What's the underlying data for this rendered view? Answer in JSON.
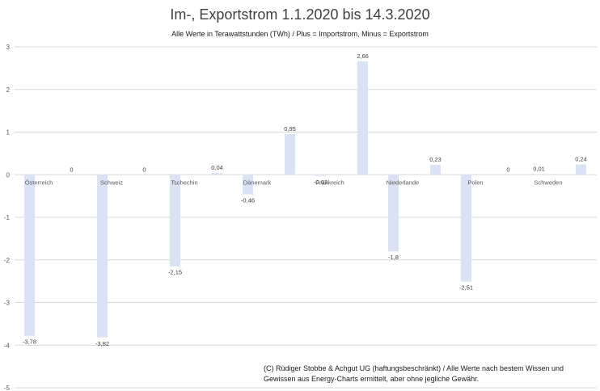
{
  "chart_data": {
    "type": "bar",
    "title": "Im-, Exportstrom 1.1.2020 bis 14.3.2020",
    "subtitle": "Alle Werte in Terawattstunden (TWh) / Plus = Importstrom, Minus = Exportstrom",
    "xlabel": "",
    "ylabel": "",
    "ylim": [
      -5,
      3
    ],
    "yticks": [
      3,
      2,
      1,
      0,
      -1,
      -2,
      -3,
      -4,
      -5
    ],
    "grid": true,
    "legend": "none",
    "bar_color": "#dae3f3",
    "categories": [
      "Österreich",
      "Schweiz",
      "Tschechin",
      "Dänemark",
      "Frankreich",
      "Niederlande",
      "Polen",
      "Schweden"
    ],
    "series": [
      {
        "values": [
          -3.78,
          -3.82,
          -2.15,
          -0.46,
          -0.03,
          -1.8,
          -2.51,
          0.01
        ]
      },
      {
        "values": [
          0,
          0,
          0.04,
          0.95,
          2.66,
          0.23,
          0,
          0.24
        ]
      }
    ],
    "data_labels": [
      [
        "-3,78",
        "-3,82",
        "-2,15",
        "-0,46",
        "-0,03",
        "-1,8",
        "-2,51",
        "0,01"
      ],
      [
        "0",
        "0",
        "0,04",
        "0,95",
        "2,66",
        "0,23",
        "0",
        "0,24"
      ]
    ],
    "annotation": "(C) Rüdiger Stobbe & Achgut UG (haftungsbeschränkt) / Alle Werte nach bestem Wissen und Gewissen aus Energy-Charts ermittelt, aber ohne jegliche Gewähr."
  }
}
